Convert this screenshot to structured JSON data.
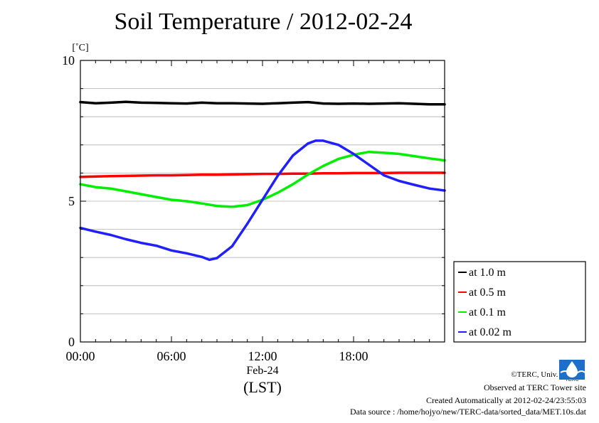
{
  "title": "Soil Temperature / 2012-02-24",
  "chart_data": {
    "type": "line",
    "title": "Soil Temperature / 2012-02-24",
    "ylabel": "[˚C]",
    "xlabel": "(LST)",
    "date_label": "Feb-24",
    "xlim": [
      0,
      24
    ],
    "ylim": [
      0,
      10
    ],
    "y_ticks": [
      0,
      5,
      10
    ],
    "y_tick_labels": [
      "0",
      "5",
      "10"
    ],
    "x_ticks": [
      0,
      6,
      12,
      18
    ],
    "x_tick_labels": [
      "00:00",
      "06:00",
      "12:00",
      "18:00"
    ],
    "grid": true,
    "legend_position": "right, outside plot area, lower",
    "series": [
      {
        "name": "at 1.0 m",
        "color": "#000000",
        "x": [
          0,
          1,
          2,
          3,
          4,
          5,
          6,
          7,
          8,
          9,
          10,
          11,
          12,
          13,
          14,
          15,
          16,
          17,
          18,
          19,
          20,
          21,
          22,
          23,
          24
        ],
        "y": [
          8.52,
          8.48,
          8.5,
          8.53,
          8.5,
          8.49,
          8.48,
          8.47,
          8.5,
          8.48,
          8.48,
          8.47,
          8.46,
          8.48,
          8.5,
          8.52,
          8.47,
          8.46,
          8.47,
          8.46,
          8.47,
          8.48,
          8.46,
          8.44,
          8.44
        ]
      },
      {
        "name": "at 0.5 m",
        "color": "#ff0000",
        "x": [
          0,
          1,
          2,
          3,
          4,
          5,
          6,
          7,
          8,
          9,
          10,
          11,
          12,
          13,
          14,
          15,
          16,
          17,
          18,
          19,
          20,
          21,
          22,
          23,
          24
        ],
        "y": [
          5.86,
          5.88,
          5.89,
          5.9,
          5.91,
          5.92,
          5.92,
          5.93,
          5.94,
          5.94,
          5.95,
          5.96,
          5.97,
          5.97,
          5.98,
          5.98,
          5.99,
          5.99,
          6.0,
          6.0,
          6.0,
          6.01,
          6.01,
          6.01,
          6.01
        ]
      },
      {
        "name": "at 0.1 m",
        "color": "#00ee00",
        "x": [
          0,
          1,
          2,
          3,
          4,
          5,
          6,
          7,
          8,
          9,
          10,
          11,
          12,
          13,
          14,
          15,
          16,
          17,
          18,
          19,
          20,
          21,
          22,
          23,
          24
        ],
        "y": [
          5.6,
          5.5,
          5.45,
          5.35,
          5.25,
          5.15,
          5.05,
          5.0,
          4.92,
          4.83,
          4.8,
          4.86,
          5.05,
          5.3,
          5.6,
          5.95,
          6.25,
          6.5,
          6.65,
          6.75,
          6.72,
          6.68,
          6.6,
          6.52,
          6.45
        ]
      },
      {
        "name": "at 0.02 m",
        "color": "#2020ff",
        "x": [
          0,
          1,
          2,
          3,
          4,
          5,
          6,
          7,
          8,
          8.5,
          9,
          10,
          11,
          12,
          13,
          14,
          15,
          15.5,
          16,
          17,
          18,
          19,
          20,
          21,
          22,
          23,
          24
        ],
        "y": [
          4.05,
          3.92,
          3.8,
          3.65,
          3.52,
          3.42,
          3.25,
          3.15,
          3.02,
          2.92,
          2.98,
          3.4,
          4.2,
          5.05,
          5.9,
          6.62,
          7.05,
          7.15,
          7.15,
          7.0,
          6.68,
          6.3,
          5.92,
          5.72,
          5.58,
          5.45,
          5.38
        ]
      }
    ]
  },
  "footer": {
    "copyright": "©TERC, Univ. Tsukuba",
    "observed": "Observed at TERC Tower site",
    "created": "Created Automatically at 2012-02-24/23:55:03",
    "source": "Data source : /home/hojyo/new/TERC-data/sorted_data/MET.10s.dat",
    "logo_text": "TERC"
  }
}
